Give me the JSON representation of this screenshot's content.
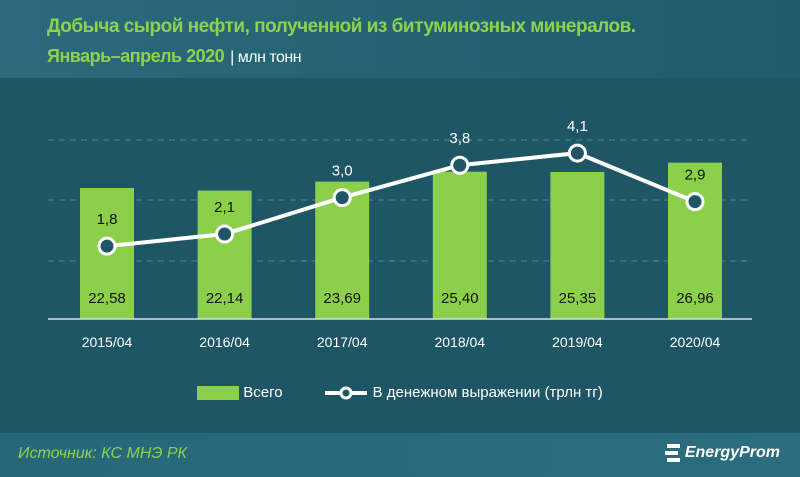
{
  "header": {
    "title": "Добыча сырой нефти, полученной из битуминозных минералов.",
    "subtitle": "Январь–апрель 2020",
    "unit": "| млн тонн"
  },
  "footer": {
    "source": "Источник: КС МНЭ РК",
    "logo": "EnergyProm"
  },
  "colors": {
    "bar": "#8ccf4a",
    "line": "#ffffff",
    "background": "#1f5666",
    "title": "#8fd14f"
  },
  "chart_data": {
    "type": "bar+line",
    "categories": [
      "2015/04",
      "2016/04",
      "2017/04",
      "2018/04",
      "2019/04",
      "2020/04"
    ],
    "series": [
      {
        "name": "Всего",
        "type": "bar",
        "values": [
          22.58,
          22.14,
          23.69,
          25.4,
          25.35,
          26.96
        ],
        "labels": [
          "22,58",
          "22,14",
          "23,69",
          "25,40",
          "25,35",
          "26,96"
        ]
      },
      {
        "name": "В денежном выражении (трлн тг)",
        "type": "line",
        "values": [
          1.8,
          2.1,
          3.0,
          3.8,
          4.1,
          2.9
        ],
        "labels": [
          "1,8",
          "2,1",
          "3,0",
          "3,8",
          "4,1",
          "2,9"
        ]
      }
    ],
    "ylim": [
      0,
      30
    ],
    "y2lim": [
      0,
      4.3
    ],
    "grid": true,
    "legend": "bottom"
  }
}
